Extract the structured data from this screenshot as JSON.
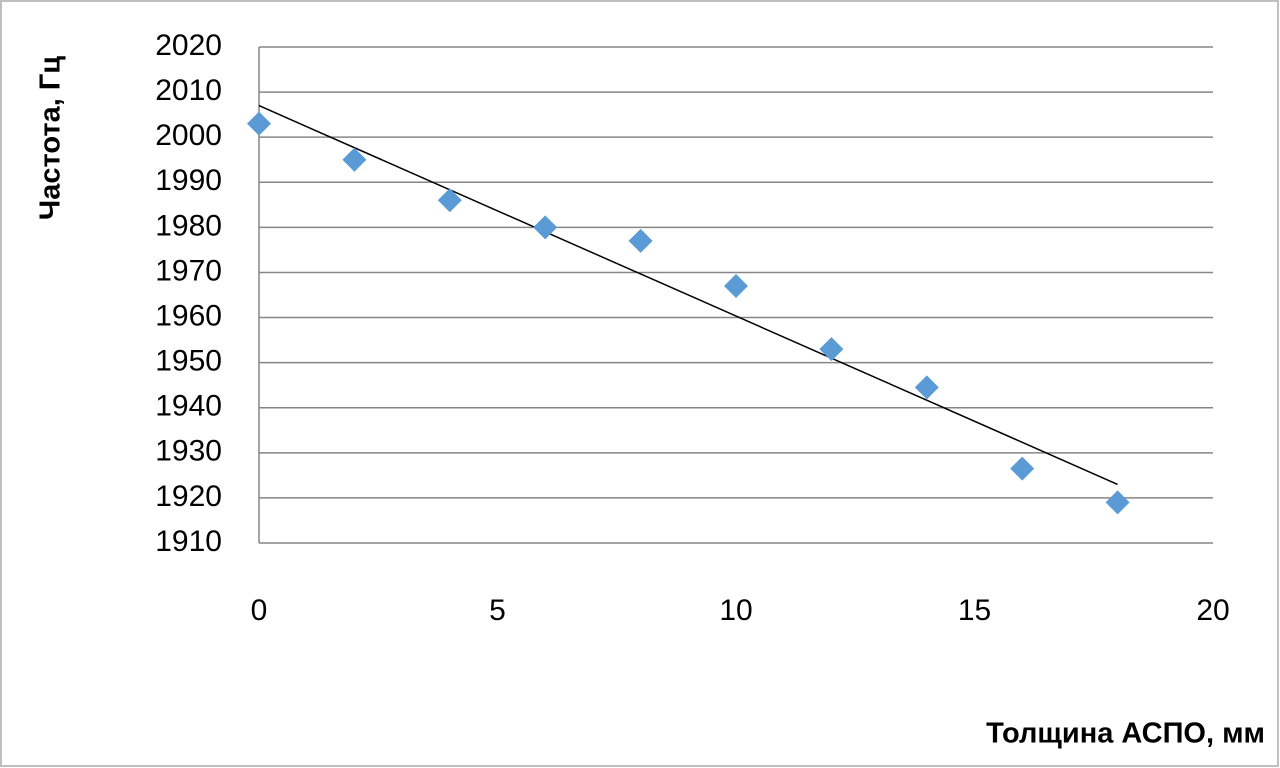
{
  "chart_data": {
    "type": "scatter",
    "x_label": "Толщина АСПО, мм",
    "y_label": "Частота, Гц",
    "x": [
      0,
      2,
      4,
      6,
      8,
      10,
      12,
      14,
      16,
      18
    ],
    "series": [
      {
        "color": "#5b9bd5",
        "values": [
          2003,
          1995,
          1986,
          1980,
          1977,
          1967,
          1953,
          1944.5,
          1926.5,
          1919
        ]
      }
    ],
    "trendline": {
      "color": "#000000",
      "x": [
        0,
        18
      ],
      "values": [
        2007,
        1923
      ]
    },
    "xlim": [
      0,
      20
    ],
    "xticks": [
      0,
      5,
      10,
      15,
      20
    ],
    "ylim": [
      1910,
      2020
    ],
    "yticks": [
      1910,
      1920,
      1930,
      1940,
      1950,
      1960,
      1970,
      1980,
      1990,
      2000,
      2010,
      2020
    ],
    "grid": true
  }
}
